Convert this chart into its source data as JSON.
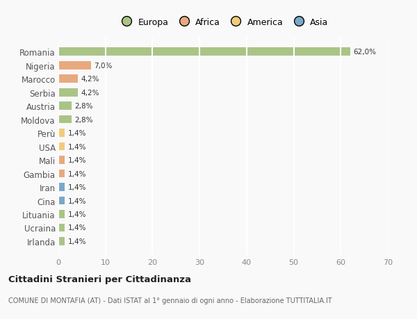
{
  "categories": [
    "Romania",
    "Nigeria",
    "Marocco",
    "Serbia",
    "Austria",
    "Moldova",
    "Perù",
    "USA",
    "Mali",
    "Gambia",
    "Iran",
    "Cina",
    "Lituania",
    "Ucraina",
    "Irlanda"
  ],
  "values": [
    62.0,
    7.0,
    4.2,
    4.2,
    2.8,
    2.8,
    1.4,
    1.4,
    1.4,
    1.4,
    1.4,
    1.4,
    1.4,
    1.4,
    1.4
  ],
  "bar_colors": [
    "#aac486",
    "#e8a97e",
    "#e8a97e",
    "#aac486",
    "#aac486",
    "#aac486",
    "#f0cc7a",
    "#f0cc7a",
    "#e8a97e",
    "#e8a97e",
    "#7aa8c8",
    "#7aa8c8",
    "#aac486",
    "#aac486",
    "#aac486"
  ],
  "value_labels": [
    "62,0%",
    "7,0%",
    "4,2%",
    "4,2%",
    "2,8%",
    "2,8%",
    "1,4%",
    "1,4%",
    "1,4%",
    "1,4%",
    "1,4%",
    "1,4%",
    "1,4%",
    "1,4%",
    "1,4%"
  ],
  "legend_labels": [
    "Europa",
    "Africa",
    "America",
    "Asia"
  ],
  "legend_colors": [
    "#aac486",
    "#e8a97e",
    "#f0cc7a",
    "#7aa8c8"
  ],
  "xlim": [
    0,
    70
  ],
  "xticks": [
    0,
    10,
    20,
    30,
    40,
    50,
    60,
    70
  ],
  "title": "Cittadini Stranieri per Cittadinanza",
  "subtitle": "COMUNE DI MONTAFIA (AT) - Dati ISTAT al 1° gennaio di ogni anno - Elaborazione TUTTITALIA.IT",
  "background_color": "#f9f9f9",
  "grid_color": "#ffffff",
  "bar_height": 0.6
}
